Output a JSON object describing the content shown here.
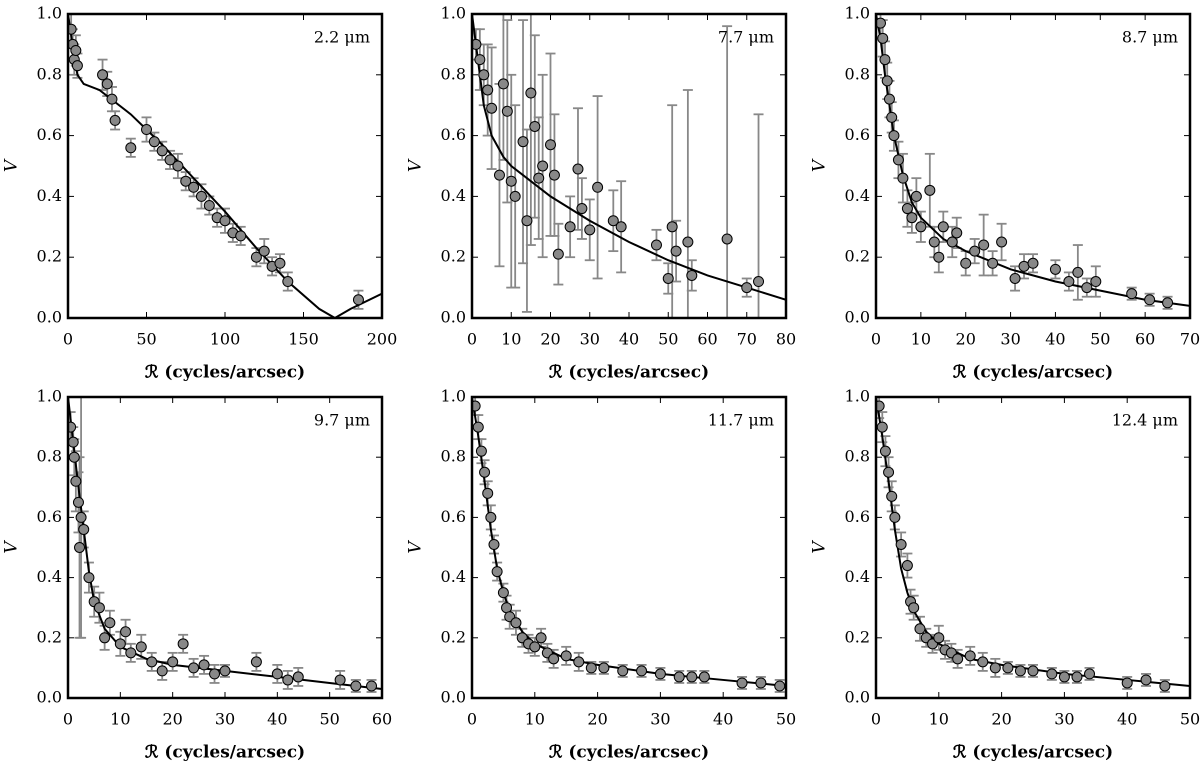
{
  "chart_data": [
    {
      "type": "scatter",
      "label": "2.2 μm",
      "xlabel": "ℛ (cycles/arcsec)",
      "ylabel": "V",
      "xlim": [
        0,
        200
      ],
      "ylim": [
        0,
        1
      ],
      "xticks": [
        0,
        50,
        100,
        150,
        200
      ],
      "yticks": [
        {
          "value": 0,
          "label": "0.0"
        },
        {
          "value": 0.2,
          "label": "0.2"
        },
        {
          "value": 0.4,
          "label": "0.4"
        },
        {
          "value": 0.6,
          "label": "0.6"
        },
        {
          "value": 0.8,
          "label": "0.8"
        },
        {
          "value": 1,
          "label": "1.0"
        }
      ],
      "points": {
        "color": "#888888",
        "x": [
          2,
          3,
          4,
          5,
          6,
          22,
          25,
          28,
          30,
          40,
          50,
          55,
          60,
          65,
          70,
          75,
          80,
          85,
          90,
          95,
          100,
          105,
          110,
          120,
          125,
          130,
          135,
          140,
          185
        ],
        "values": [
          0.95,
          0.9,
          0.85,
          0.88,
          0.83,
          0.8,
          0.77,
          0.72,
          0.65,
          0.56,
          0.62,
          0.58,
          0.55,
          0.52,
          0.5,
          0.45,
          0.43,
          0.4,
          0.37,
          0.33,
          0.32,
          0.28,
          0.27,
          0.2,
          0.22,
          0.17,
          0.18,
          0.12,
          0.06
        ],
        "errors": [
          0.06,
          0.05,
          0.05,
          0.05,
          0.04,
          0.05,
          0.04,
          0.04,
          0.03,
          0.03,
          0.04,
          0.03,
          0.03,
          0.03,
          0.04,
          0.03,
          0.03,
          0.04,
          0.03,
          0.03,
          0.04,
          0.03,
          0.03,
          0.03,
          0.04,
          0.03,
          0.03,
          0.03,
          0.03
        ]
      },
      "model": {
        "color": "#000000",
        "x": [
          0,
          2,
          4,
          6,
          10,
          20,
          40,
          60,
          80,
          100,
          120,
          140,
          160,
          170,
          180,
          200
        ],
        "values": [
          1,
          0.93,
          0.86,
          0.8,
          0.77,
          0.75,
          0.67,
          0.57,
          0.46,
          0.35,
          0.23,
          0.12,
          0.03,
          0,
          0.03,
          0.08
        ]
      }
    },
    {
      "type": "scatter",
      "label": "7.7 μm",
      "xlabel": "ℛ (cycles/arcsec)",
      "ylabel": "V",
      "xlim": [
        0,
        80
      ],
      "ylim": [
        0,
        1
      ],
      "xticks": [
        0,
        10,
        20,
        30,
        40,
        50,
        60,
        70,
        80
      ],
      "yticks": [
        {
          "value": 0,
          "label": "0.0"
        },
        {
          "value": 0.2,
          "label": "0.2"
        },
        {
          "value": 0.4,
          "label": "0.4"
        },
        {
          "value": 0.6,
          "label": "0.6"
        },
        {
          "value": 0.8,
          "label": "0.8"
        },
        {
          "value": 1,
          "label": "1.0"
        }
      ],
      "points": {
        "color": "#888888",
        "x": [
          1,
          2,
          3,
          4,
          5,
          7,
          8,
          9,
          10,
          11,
          13,
          14,
          15,
          16,
          17,
          18,
          20,
          21,
          22,
          25,
          27,
          28,
          30,
          32,
          36,
          38,
          47,
          50,
          51,
          52,
          55,
          56,
          65,
          70,
          73
        ],
        "values": [
          0.9,
          0.85,
          0.8,
          0.75,
          0.69,
          0.47,
          0.77,
          0.68,
          0.45,
          0.4,
          0.58,
          0.32,
          0.74,
          0.63,
          0.46,
          0.5,
          0.57,
          0.47,
          0.21,
          0.3,
          0.49,
          0.36,
          0.29,
          0.43,
          0.32,
          0.3,
          0.24,
          0.13,
          0.3,
          0.22,
          0.25,
          0.14,
          0.26,
          0.1,
          0.12
        ],
        "errors": [
          0.05,
          0.1,
          0.1,
          0.15,
          0.2,
          0.3,
          0.25,
          0.3,
          0.35,
          0.3,
          0.4,
          0.3,
          0.5,
          0.3,
          0.2,
          0.3,
          0.3,
          0.2,
          0.1,
          0.1,
          0.2,
          0.1,
          0.1,
          0.3,
          0.1,
          0.15,
          0.05,
          0.05,
          0.4,
          0.1,
          0.5,
          0.05,
          0.7,
          0.03,
          0.55
        ]
      },
      "model": {
        "color": "#000000",
        "x": [
          0,
          1,
          2,
          3,
          5,
          8,
          10,
          15,
          20,
          30,
          40,
          50,
          60,
          70,
          80
        ],
        "values": [
          1,
          0.9,
          0.8,
          0.7,
          0.6,
          0.53,
          0.5,
          0.45,
          0.4,
          0.32,
          0.25,
          0.19,
          0.14,
          0.1,
          0.06
        ]
      }
    },
    {
      "type": "scatter",
      "label": "8.7 μm",
      "xlabel": "ℛ (cycles/arcsec)",
      "ylabel": "V",
      "xlim": [
        0,
        70
      ],
      "ylim": [
        0,
        1
      ],
      "xticks": [
        0,
        10,
        20,
        30,
        40,
        50,
        60,
        70
      ],
      "yticks": [
        {
          "value": 0,
          "label": "0.0"
        },
        {
          "value": 0.2,
          "label": "0.2"
        },
        {
          "value": 0.4,
          "label": "0.4"
        },
        {
          "value": 0.6,
          "label": "0.6"
        },
        {
          "value": 0.8,
          "label": "0.8"
        },
        {
          "value": 1,
          "label": "1.0"
        }
      ],
      "points": {
        "color": "#888888",
        "x": [
          1,
          1.5,
          2,
          2.5,
          3,
          3.5,
          4,
          5,
          6,
          7,
          8,
          9,
          10,
          12,
          13,
          14,
          15,
          17,
          18,
          20,
          22,
          24,
          26,
          28,
          31,
          33,
          35,
          40,
          43,
          45,
          47,
          49,
          57,
          61,
          65
        ],
        "values": [
          0.97,
          0.92,
          0.85,
          0.78,
          0.72,
          0.66,
          0.6,
          0.52,
          0.46,
          0.36,
          0.33,
          0.4,
          0.3,
          0.42,
          0.25,
          0.2,
          0.3,
          0.25,
          0.28,
          0.18,
          0.22,
          0.24,
          0.18,
          0.25,
          0.13,
          0.17,
          0.18,
          0.16,
          0.12,
          0.15,
          0.1,
          0.12,
          0.08,
          0.06,
          0.05
        ],
        "errors": [
          0.05,
          0.06,
          0.06,
          0.06,
          0.06,
          0.05,
          0.05,
          0.06,
          0.08,
          0.06,
          0.05,
          0.06,
          0.05,
          0.12,
          0.05,
          0.05,
          0.05,
          0.05,
          0.05,
          0.04,
          0.04,
          0.1,
          0.04,
          0.06,
          0.04,
          0.04,
          0.03,
          0.03,
          0.03,
          0.09,
          0.03,
          0.05,
          0.02,
          0.02,
          0.02
        ]
      },
      "model": {
        "color": "#000000",
        "x": [
          0,
          1,
          2,
          4,
          6,
          8,
          10,
          15,
          20,
          30,
          40,
          50,
          60,
          70
        ],
        "values": [
          1,
          0.92,
          0.8,
          0.6,
          0.47,
          0.38,
          0.33,
          0.26,
          0.22,
          0.16,
          0.12,
          0.09,
          0.06,
          0.04
        ]
      }
    },
    {
      "type": "scatter",
      "label": "9.7 μm",
      "xlabel": "ℛ (cycles/arcsec)",
      "ylabel": "V",
      "xlim": [
        0,
        60
      ],
      "ylim": [
        0,
        1
      ],
      "xticks": [
        0,
        10,
        20,
        30,
        40,
        50,
        60
      ],
      "yticks": [
        {
          "value": 0,
          "label": "0.0"
        },
        {
          "value": 0.2,
          "label": "0.2"
        },
        {
          "value": 0.4,
          "label": "0.4"
        },
        {
          "value": 0.6,
          "label": "0.6"
        },
        {
          "value": 0.8,
          "label": "0.8"
        },
        {
          "value": 1,
          "label": "1.0"
        }
      ],
      "points": {
        "color": "#888888",
        "x": [
          0.5,
          1,
          1.2,
          1.5,
          2,
          2.2,
          2.5,
          3,
          4,
          5,
          6,
          7,
          8,
          10,
          11,
          12,
          14,
          16,
          18,
          20,
          22,
          24,
          26,
          28,
          30,
          36,
          40,
          42,
          44,
          52,
          55,
          58
        ],
        "values": [
          0.9,
          0.85,
          0.8,
          0.72,
          0.65,
          0.5,
          0.6,
          0.56,
          0.4,
          0.32,
          0.3,
          0.2,
          0.25,
          0.18,
          0.22,
          0.15,
          0.17,
          0.12,
          0.09,
          0.12,
          0.18,
          0.1,
          0.11,
          0.08,
          0.09,
          0.12,
          0.08,
          0.06,
          0.07,
          0.06,
          0.04,
          0.04
        ],
        "errors": [
          0.05,
          0.05,
          0.06,
          0.1,
          0.1,
          0.3,
          0.4,
          0.06,
          0.05,
          0.05,
          0.05,
          0.04,
          0.04,
          0.04,
          0.04,
          0.03,
          0.04,
          0.03,
          0.03,
          0.03,
          0.03,
          0.03,
          0.03,
          0.03,
          0.02,
          0.03,
          0.03,
          0.03,
          0.03,
          0.03,
          0.02,
          0.02
        ]
      },
      "model": {
        "color": "#000000",
        "x": [
          0,
          1,
          2,
          3,
          4,
          5,
          7,
          10,
          15,
          20,
          30,
          40,
          50,
          60
        ],
        "values": [
          1,
          0.85,
          0.7,
          0.56,
          0.42,
          0.32,
          0.23,
          0.17,
          0.13,
          0.11,
          0.09,
          0.07,
          0.05,
          0.03
        ]
      }
    },
    {
      "type": "scatter",
      "label": "11.7 μm",
      "xlabel": "ℛ (cycles/arcsec)",
      "ylabel": "V",
      "xlim": [
        0,
        50
      ],
      "ylim": [
        0,
        1
      ],
      "xticks": [
        0,
        10,
        20,
        30,
        40,
        50
      ],
      "yticks": [
        {
          "value": 0,
          "label": "0.0"
        },
        {
          "value": 0.2,
          "label": "0.2"
        },
        {
          "value": 0.4,
          "label": "0.4"
        },
        {
          "value": 0.6,
          "label": "0.6"
        },
        {
          "value": 0.8,
          "label": "0.8"
        },
        {
          "value": 1,
          "label": "1.0"
        }
      ],
      "points": {
        "color": "#888888",
        "x": [
          0.5,
          1,
          1.5,
          2,
          2.5,
          3,
          3.5,
          4,
          5,
          5.5,
          6,
          7,
          8,
          9,
          10,
          11,
          12,
          13,
          15,
          17,
          19,
          21,
          24,
          27,
          30,
          33,
          35,
          37,
          43,
          46,
          49
        ],
        "values": [
          0.97,
          0.9,
          0.82,
          0.75,
          0.68,
          0.6,
          0.51,
          0.42,
          0.35,
          0.3,
          0.27,
          0.25,
          0.2,
          0.18,
          0.17,
          0.2,
          0.15,
          0.13,
          0.14,
          0.12,
          0.1,
          0.1,
          0.09,
          0.09,
          0.08,
          0.07,
          0.07,
          0.07,
          0.05,
          0.05,
          0.04
        ],
        "errors": [
          0.03,
          0.04,
          0.04,
          0.04,
          0.04,
          0.04,
          0.03,
          0.03,
          0.03,
          0.04,
          0.04,
          0.04,
          0.03,
          0.03,
          0.03,
          0.03,
          0.03,
          0.03,
          0.03,
          0.03,
          0.02,
          0.02,
          0.02,
          0.02,
          0.02,
          0.02,
          0.02,
          0.02,
          0.02,
          0.02,
          0.02
        ]
      },
      "model": {
        "color": "#000000",
        "x": [
          0,
          1,
          2,
          3,
          4,
          5,
          6,
          8,
          10,
          15,
          20,
          30,
          40,
          50
        ],
        "values": [
          1,
          0.87,
          0.72,
          0.56,
          0.43,
          0.35,
          0.29,
          0.22,
          0.18,
          0.13,
          0.11,
          0.08,
          0.06,
          0.04
        ]
      }
    },
    {
      "type": "scatter",
      "label": "12.4 μm",
      "xlabel": "ℛ (cycles/arcsec)",
      "ylabel": "V",
      "xlim": [
        0,
        50
      ],
      "ylim": [
        0,
        1
      ],
      "xticks": [
        0,
        10,
        20,
        30,
        40,
        50
      ],
      "yticks": [
        {
          "value": 0,
          "label": "0.0"
        },
        {
          "value": 0.2,
          "label": "0.2"
        },
        {
          "value": 0.4,
          "label": "0.4"
        },
        {
          "value": 0.6,
          "label": "0.6"
        },
        {
          "value": 0.8,
          "label": "0.8"
        },
        {
          "value": 1,
          "label": "1.0"
        }
      ],
      "points": {
        "color": "#888888",
        "x": [
          0.5,
          1,
          1.5,
          2,
          2.5,
          3,
          4,
          5,
          5.5,
          6,
          7,
          8,
          9,
          10,
          11,
          12,
          13,
          15,
          17,
          19,
          21,
          23,
          25,
          28,
          30,
          32,
          34,
          40,
          43,
          46
        ],
        "values": [
          0.97,
          0.9,
          0.82,
          0.75,
          0.67,
          0.6,
          0.51,
          0.44,
          0.32,
          0.3,
          0.23,
          0.2,
          0.18,
          0.2,
          0.16,
          0.15,
          0.13,
          0.14,
          0.12,
          0.1,
          0.1,
          0.09,
          0.09,
          0.08,
          0.07,
          0.07,
          0.08,
          0.05,
          0.06,
          0.04
        ],
        "errors": [
          0.04,
          0.05,
          0.05,
          0.05,
          0.05,
          0.04,
          0.04,
          0.04,
          0.04,
          0.04,
          0.04,
          0.03,
          0.03,
          0.04,
          0.03,
          0.03,
          0.03,
          0.03,
          0.03,
          0.03,
          0.02,
          0.02,
          0.02,
          0.02,
          0.02,
          0.02,
          0.02,
          0.02,
          0.02,
          0.02
        ]
      },
      "model": {
        "color": "#000000",
        "x": [
          0,
          1,
          2,
          3,
          4,
          5,
          6,
          8,
          10,
          15,
          20,
          30,
          40,
          50
        ],
        "values": [
          1,
          0.87,
          0.72,
          0.56,
          0.43,
          0.35,
          0.29,
          0.22,
          0.18,
          0.13,
          0.11,
          0.08,
          0.06,
          0.04
        ]
      }
    }
  ]
}
